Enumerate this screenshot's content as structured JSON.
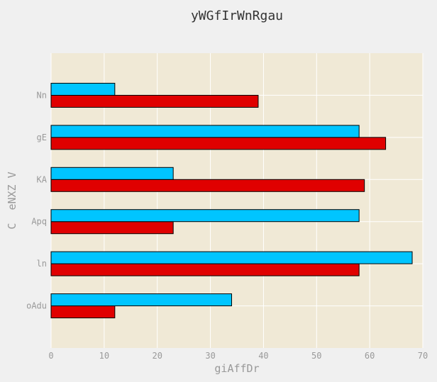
{
  "chart_data": {
    "type": "bar",
    "orientation": "horizontal",
    "title": "yWGfIrWnRgau",
    "xlabel": "giAffDr",
    "ylabel": "C  eNXZ V",
    "categories": [
      "oAdu",
      "ln",
      "Apq",
      "KA",
      "gE",
      "Nn"
    ],
    "series": [
      {
        "color": "#e00000",
        "values": [
          12,
          58,
          23,
          59,
          63,
          39
        ]
      },
      {
        "color": "#00c5ff",
        "values": [
          34,
          68,
          58,
          23,
          58,
          12
        ]
      }
    ],
    "xlim": [
      0,
      70
    ],
    "xticks": [
      0,
      10,
      20,
      30,
      40,
      50,
      60,
      70
    ],
    "grid": true,
    "colors": {
      "figure_background": "#f0f0f0",
      "plot_background": "#f0e9d6",
      "grid": "#ffffff",
      "bar_edge": "#000000",
      "text": "#999999",
      "title": "#333333"
    }
  }
}
